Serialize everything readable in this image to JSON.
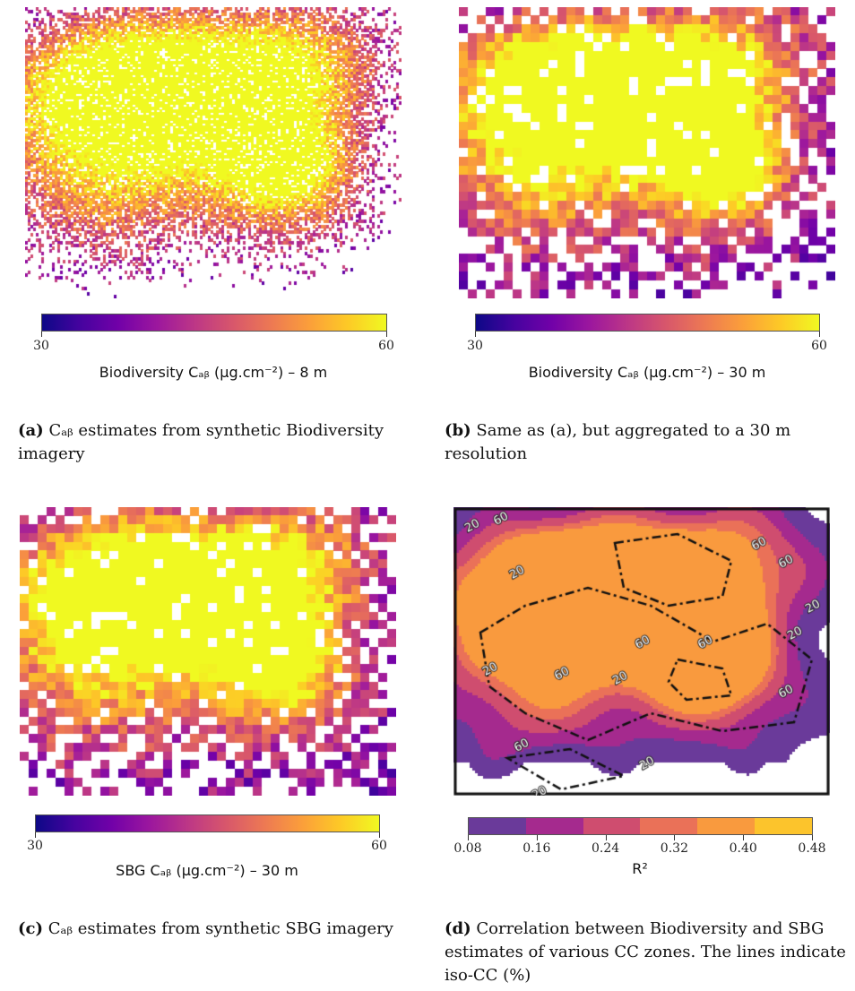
{
  "panels": [
    {
      "id": "a",
      "colorbar": {
        "min": "30",
        "max": "60",
        "title": "Biodiversity Cₐᵦ (μg.cm⁻²) – 8 m"
      },
      "caption": {
        "label": "(a)",
        "text": "Cₐᵦ estimates from synthetic Biodiversity imagery"
      }
    },
    {
      "id": "b",
      "colorbar": {
        "min": "30",
        "max": "60",
        "title": "Biodiversity Cₐᵦ (μg.cm⁻²) – 30 m"
      },
      "caption": {
        "label": "(b)",
        "text": "Same as (a), but aggregated to a 30 m resolution"
      }
    },
    {
      "id": "c",
      "colorbar": {
        "min": "30",
        "max": "60",
        "title": "SBG Cₐᵦ (μg.cm⁻²) – 30 m"
      },
      "caption": {
        "label": "(c)",
        "text": "Cₐᵦ estimates from synthetic SBG imagery"
      }
    },
    {
      "id": "d",
      "colorbar": {
        "ticks": [
          "0.08",
          "0.16",
          "0.24",
          "0.32",
          "0.40",
          "0.48"
        ],
        "title": "R²"
      },
      "contour_labels": [
        "20",
        "60",
        "20",
        "60",
        "60",
        "20",
        "20",
        "60",
        "60",
        "20",
        "60",
        "60",
        "20",
        "60",
        "20",
        "20"
      ],
      "caption": {
        "label": "(d)",
        "text": "Correlation between Biodiversity and SBG estimates of various CC zones. The lines indicate iso-CC (%)"
      }
    }
  ],
  "chart_data": [
    {
      "type": "heatmap",
      "title": "",
      "colormap": "plasma",
      "value_range": [
        30,
        60
      ],
      "colorbar_label": "Biodiversity Cₐᵦ (μg.cm⁻²) – 8 m"
    },
    {
      "type": "heatmap",
      "title": "",
      "colormap": "plasma",
      "value_range": [
        30,
        60
      ],
      "colorbar_label": "Biodiversity Cₐᵦ (μg.cm⁻²) – 30 m"
    },
    {
      "type": "heatmap",
      "title": "",
      "colormap": "plasma",
      "value_range": [
        30,
        60
      ],
      "colorbar_label": "SBG Cₐᵦ (μg.cm⁻²) – 30 m"
    },
    {
      "type": "heatmap",
      "title": "",
      "colormap": "plasma (discrete)",
      "levels": [
        0.08,
        0.16,
        0.24,
        0.32,
        0.4,
        0.48
      ],
      "colorbar_label": "R²",
      "contour_levels_percent": [
        20,
        60
      ]
    }
  ],
  "colors": {
    "plasma": [
      "#0d0887",
      "#46039f",
      "#7201a8",
      "#9c179e",
      "#bd3786",
      "#d8576b",
      "#ed7953",
      "#fb9f3a",
      "#fdca26",
      "#f0f921"
    ],
    "levels": [
      "#6a3a9a",
      "#a52a8e",
      "#cf4d6f",
      "#ea7158",
      "#f99a3e",
      "#fcc42c"
    ]
  }
}
